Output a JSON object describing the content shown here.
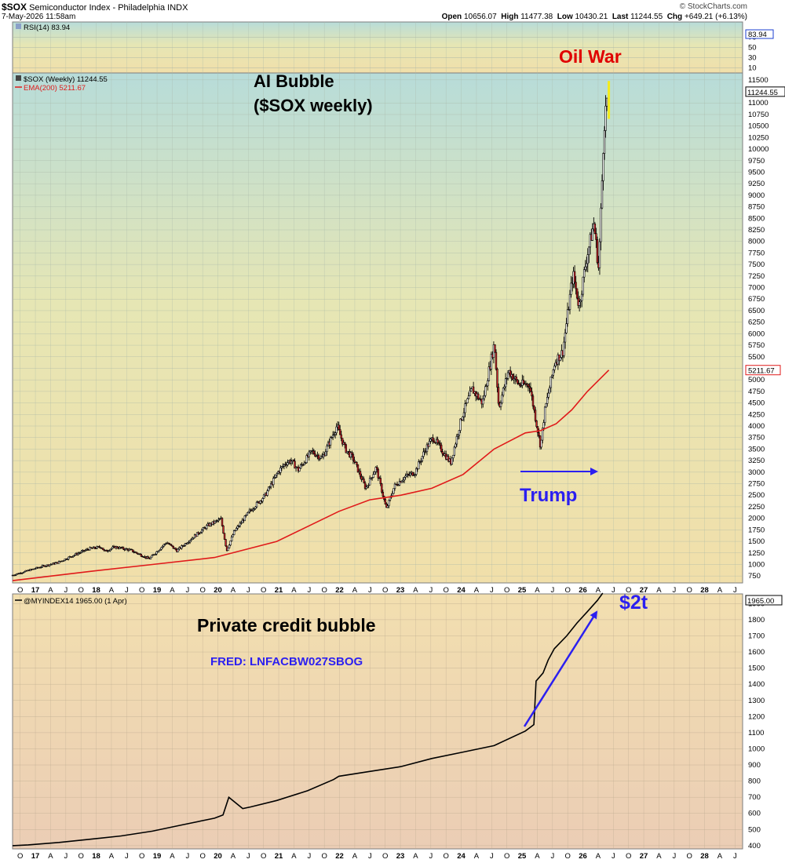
{
  "header": {
    "symbol": "$SOX",
    "name": "Semiconductor Index - Philadelphia  INDX",
    "date": "7-May-2026 11:58am",
    "brand": "© StockCharts.com",
    "open_label": "Open",
    "open": "10656.07",
    "high_label": "High",
    "high": "11477.38",
    "low_label": "Low",
    "low": "10430.21",
    "last_label": "Last",
    "last": "11244.55",
    "chg_label": "Chg",
    "chg": "+649.21 (+6.13%)"
  },
  "colors": {
    "candle_up": "#ffffff",
    "candle_down": "#d8262c",
    "candle_outline": "#000000",
    "ema": "#e01a1a",
    "private_credit": "#000000",
    "arrow_blue": "#2b1ff0",
    "oil_war_text": "#e00000",
    "fred_text": "#2b1ff0",
    "spike": "#f4ec1a"
  },
  "annotations": {
    "ai_bubble_line1": "AI Bubble",
    "ai_bubble_line2": "($SOX weekly)",
    "oil_war": "Oil War",
    "trump": "Trump",
    "private_credit": "Private credit bubble",
    "fred": "FRED: LNFACBW027SBOG",
    "two_trillion": "$2t"
  },
  "x_axis": {
    "labels": [
      "O",
      "17",
      "A",
      "J",
      "O",
      "18",
      "A",
      "J",
      "O",
      "19",
      "A",
      "J",
      "O",
      "20",
      "A",
      "J",
      "O",
      "21",
      "A",
      "J",
      "O",
      "22",
      "A",
      "J",
      "O",
      "23",
      "A",
      "J",
      "O",
      "24",
      "A",
      "J",
      "O",
      "25",
      "A",
      "J",
      "O",
      "26",
      "A",
      "J",
      "O",
      "27",
      "A",
      "J",
      "O",
      "28",
      "A",
      "J"
    ],
    "start_date": "2016-10-01",
    "end_date": "2028-07-01"
  },
  "chart_data": [
    {
      "type": "line",
      "panel": "RSI",
      "legend": "RSI(14) 83.94",
      "last_value": "83.94",
      "ylim": [
        0,
        100
      ],
      "ticks": [
        "70",
        "50",
        "30",
        "10"
      ]
    },
    {
      "type": "candlestick",
      "panel": "$SOX (Weekly)",
      "legend_price": "$SOX (Weekly) 11244.55",
      "legend_ema": "EMA(200) 5211.67",
      "last_value": "11244.55",
      "ema_last_value": "5211.67",
      "ylim": [
        600,
        11650
      ],
      "ticks": [
        "11500",
        "11000",
        "10750",
        "10500",
        "10250",
        "10000",
        "9750",
        "9500",
        "9250",
        "9000",
        "8750",
        "8500",
        "8250",
        "8000",
        "7750",
        "7500",
        "7250",
        "7000",
        "6750",
        "6500",
        "6250",
        "6000",
        "5750",
        "5500",
        "5250",
        "5000",
        "4750",
        "4500",
        "4250",
        "4000",
        "3750",
        "3500",
        "3250",
        "3000",
        "2750",
        "2500",
        "2250",
        "2000",
        "1750",
        "1500",
        "1250",
        "1000",
        "750"
      ],
      "price_path": [
        [
          "2016-10-01",
          760
        ],
        [
          "2017-01-01",
          860
        ],
        [
          "2017-04-01",
          960
        ],
        [
          "2017-07-01",
          1040
        ],
        [
          "2017-10-01",
          1200
        ],
        [
          "2018-01-01",
          1340
        ],
        [
          "2018-03-15",
          1380
        ],
        [
          "2018-04-01",
          1280
        ],
        [
          "2018-06-01",
          1380
        ],
        [
          "2018-09-01",
          1310
        ],
        [
          "2018-12-20",
          1120
        ],
        [
          "2019-04-01",
          1480
        ],
        [
          "2019-06-01",
          1300
        ],
        [
          "2019-09-01",
          1580
        ],
        [
          "2019-12-01",
          1850
        ],
        [
          "2020-02-15",
          1980
        ],
        [
          "2020-03-20",
          1300
        ],
        [
          "2020-05-01",
          1700
        ],
        [
          "2020-08-01",
          2150
        ],
        [
          "2020-11-01",
          2500
        ],
        [
          "2021-01-15",
          3000
        ],
        [
          "2021-03-01",
          3200
        ],
        [
          "2021-04-01",
          3250
        ],
        [
          "2021-05-15",
          3050
        ],
        [
          "2021-08-01",
          3450
        ],
        [
          "2021-10-01",
          3300
        ],
        [
          "2021-12-27",
          4000
        ],
        [
          "2022-02-15",
          3500
        ],
        [
          "2022-04-01",
          3300
        ],
        [
          "2022-06-15",
          2650
        ],
        [
          "2022-08-15",
          3100
        ],
        [
          "2022-10-14",
          2200
        ],
        [
          "2022-12-01",
          2700
        ],
        [
          "2023-02-01",
          2900
        ],
        [
          "2023-04-01",
          3000
        ],
        [
          "2023-06-01",
          3500
        ],
        [
          "2023-07-15",
          3750
        ],
        [
          "2023-10-27",
          3200
        ],
        [
          "2023-12-31",
          4200
        ],
        [
          "2024-03-01",
          4800
        ],
        [
          "2024-05-01",
          4500
        ],
        [
          "2024-07-10",
          5800
        ],
        [
          "2024-08-05",
          4400
        ],
        [
          "2024-10-01",
          5200
        ],
        [
          "2024-12-01",
          4900
        ],
        [
          "2025-02-01",
          4900
        ],
        [
          "2025-04-08",
          3550
        ],
        [
          "2025-05-01",
          4300
        ],
        [
          "2025-07-01",
          5400
        ],
        [
          "2025-08-15",
          5600
        ],
        [
          "2025-10-15",
          7300
        ],
        [
          "2025-11-20",
          6600
        ],
        [
          "2026-01-01",
          7600
        ],
        [
          "2026-02-15",
          8400
        ],
        [
          "2026-03-15",
          7400
        ],
        [
          "2026-04-01",
          9000
        ],
        [
          "2026-04-15",
          10500
        ],
        [
          "2026-05-07",
          11244.55
        ]
      ],
      "ema200": [
        [
          "2016-10-01",
          650
        ],
        [
          "2018-01-01",
          850
        ],
        [
          "2019-01-01",
          1000
        ],
        [
          "2020-01-01",
          1150
        ],
        [
          "2021-01-01",
          1500
        ],
        [
          "2022-01-01",
          2150
        ],
        [
          "2022-07-01",
          2400
        ],
        [
          "2023-01-01",
          2500
        ],
        [
          "2023-07-01",
          2650
        ],
        [
          "2024-01-01",
          2950
        ],
        [
          "2024-07-01",
          3500
        ],
        [
          "2025-01-01",
          3850
        ],
        [
          "2025-04-01",
          3900
        ],
        [
          "2025-07-01",
          4050
        ],
        [
          "2025-10-01",
          4350
        ],
        [
          "2026-01-01",
          4750
        ],
        [
          "2026-05-07",
          5211.67
        ]
      ]
    },
    {
      "type": "line",
      "panel": "@MYINDEX14",
      "legend": "@MYINDEX14 1965.00 (1 Apr)",
      "last_value": "1965.00",
      "ylim": [
        380,
        1960
      ],
      "ticks": [
        "1900",
        "1800",
        "1700",
        "1600",
        "1500",
        "1400",
        "1300",
        "1200",
        "1100",
        "1000",
        "900",
        "800",
        "700",
        "600",
        "500",
        "400"
      ],
      "values": [
        [
          "2016-10-01",
          400
        ],
        [
          "2017-01-01",
          405
        ],
        [
          "2017-07-01",
          420
        ],
        [
          "2018-01-01",
          440
        ],
        [
          "2018-07-01",
          460
        ],
        [
          "2019-01-01",
          490
        ],
        [
          "2019-07-01",
          530
        ],
        [
          "2020-01-01",
          570
        ],
        [
          "2020-02-20",
          590
        ],
        [
          "2020-03-25",
          700
        ],
        [
          "2020-06-15",
          630
        ],
        [
          "2020-08-01",
          640
        ],
        [
          "2021-01-01",
          680
        ],
        [
          "2021-07-01",
          740
        ],
        [
          "2021-12-01",
          810
        ],
        [
          "2022-01-01",
          830
        ],
        [
          "2022-07-01",
          860
        ],
        [
          "2023-01-01",
          890
        ],
        [
          "2023-07-01",
          940
        ],
        [
          "2024-01-01",
          980
        ],
        [
          "2024-07-01",
          1020
        ],
        [
          "2025-01-01",
          1110
        ],
        [
          "2025-02-20",
          1150
        ],
        [
          "2025-03-05",
          1420
        ],
        [
          "2025-04-15",
          1470
        ],
        [
          "2025-05-15",
          1550
        ],
        [
          "2025-06-20",
          1620
        ],
        [
          "2025-09-01",
          1700
        ],
        [
          "2025-11-01",
          1780
        ],
        [
          "2026-01-01",
          1850
        ],
        [
          "2026-03-01",
          1920
        ],
        [
          "2026-04-01",
          1965
        ]
      ]
    }
  ]
}
